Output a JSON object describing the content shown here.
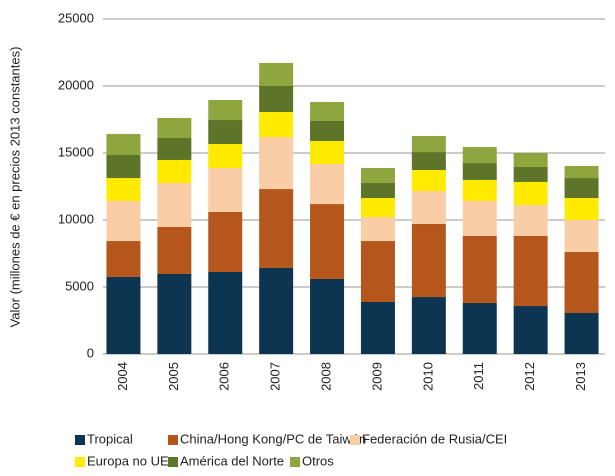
{
  "chart_data": {
    "type": "stacked_bar",
    "y_label": "Valor (millones de € en precios 2013 constantes)",
    "categories": [
      "2004",
      "2005",
      "2006",
      "2007",
      "2008",
      "2009",
      "2010",
      "2011",
      "2012",
      "2013"
    ],
    "series": [
      {
        "name": "Tropical",
        "color": "#0d3450",
        "values": [
          5750,
          5970,
          6120,
          6420,
          5600,
          3880,
          4250,
          3810,
          3580,
          3060
        ]
      },
      {
        "name": "China/Hong Kong/PC de Taiwán",
        "color": "#b5561c",
        "values": [
          2680,
          3510,
          4480,
          5890,
          5590,
          4550,
          5450,
          5000,
          5230,
          4550
        ]
      },
      {
        "name": "Federación de Rusia/CEI",
        "color": "#f9cda5",
        "values": [
          2990,
          3280,
          3280,
          3880,
          2990,
          1790,
          2460,
          2610,
          2310,
          2390
        ]
      },
      {
        "name": "Europa no UE",
        "color": "#ffea00",
        "values": [
          1710,
          1720,
          1790,
          1870,
          1720,
          1420,
          1570,
          1570,
          1720,
          1640
        ]
      },
      {
        "name": "América del Norte",
        "color": "#5d7429",
        "values": [
          1720,
          1640,
          1790,
          1940,
          1490,
          1120,
          1340,
          1260,
          1120,
          1490
        ]
      },
      {
        "name": "Otros",
        "color": "#8ea63d",
        "values": [
          1570,
          1490,
          1500,
          1720,
          1420,
          1120,
          1200,
          1200,
          1040,
          900
        ]
      }
    ],
    "ylim": [
      0,
      25000
    ],
    "yticks": [
      0,
      5000,
      10000,
      15000,
      20000,
      25000
    ],
    "grid": true
  }
}
